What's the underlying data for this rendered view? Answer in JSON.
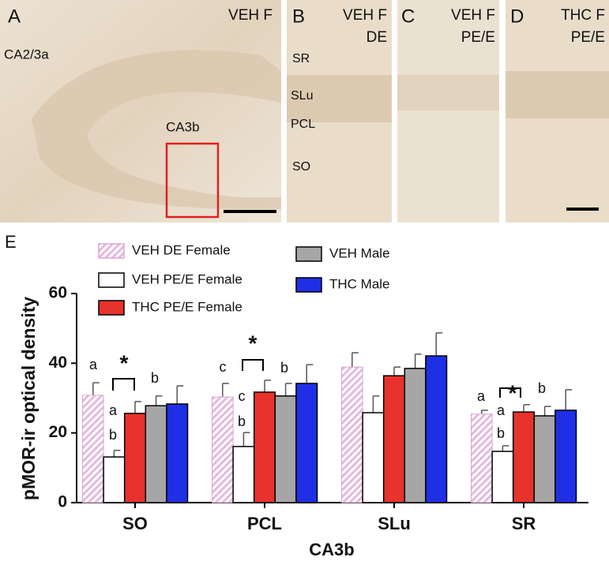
{
  "micrographs": [
    {
      "label": "A",
      "condition": "VEH F",
      "regions": [
        "CA2/3a",
        "CA3b"
      ]
    },
    {
      "label": "B",
      "condition": [
        "VEH F",
        "DE"
      ],
      "regions": [
        "SR",
        "SLu",
        "PCL",
        "SO"
      ]
    },
    {
      "label": "C",
      "condition": [
        "VEH F",
        "PE/E"
      ]
    },
    {
      "label": "D",
      "condition": [
        "THC F",
        "PE/E"
      ]
    }
  ],
  "chart_data": {
    "type": "bar",
    "panel_label": "E",
    "y_label": "pMOR-ir optical density",
    "x_label": "CA3b",
    "categories": [
      "SO",
      "PCL",
      "SLu",
      "SR"
    ],
    "series": [
      {
        "name": "VEH DE Female",
        "color": "#f2d6ee",
        "hatch": true,
        "values": [
          30.8,
          30.3,
          38.9,
          25.4
        ],
        "errors": [
          3.6,
          3.9,
          4.1,
          1.1
        ]
      },
      {
        "name": "VEH PE/E Female",
        "color": "#ffffff",
        "values": [
          13.1,
          16.1,
          25.8,
          14.7
        ],
        "errors": [
          1.9,
          4.0,
          4.8,
          1.6
        ]
      },
      {
        "name": "THC PE/E Female",
        "color": "#e8322c",
        "values": [
          25.6,
          31.7,
          36.4,
          26.0
        ],
        "errors": [
          3.4,
          3.4,
          2.5,
          2.1
        ]
      },
      {
        "name": "VEH Male",
        "color": "#a6a6a6",
        "values": [
          27.8,
          30.6,
          38.5,
          24.9
        ],
        "errors": [
          2.8,
          3.6,
          4.1,
          2.7
        ]
      },
      {
        "name": "THC Male",
        "color": "#1f2fe6",
        "values": [
          28.3,
          34.2,
          42.1,
          26.5
        ],
        "errors": [
          5.2,
          5.4,
          6.6,
          5.9
        ]
      }
    ],
    "annotations": [
      "a",
      "a",
      "b",
      "*",
      "b",
      "c",
      "c",
      "b",
      "*",
      "b",
      "a",
      "a",
      "b",
      "*",
      "b"
    ],
    "ylim": [
      0,
      60
    ],
    "yticks": [
      0,
      20,
      40,
      60
    ]
  }
}
